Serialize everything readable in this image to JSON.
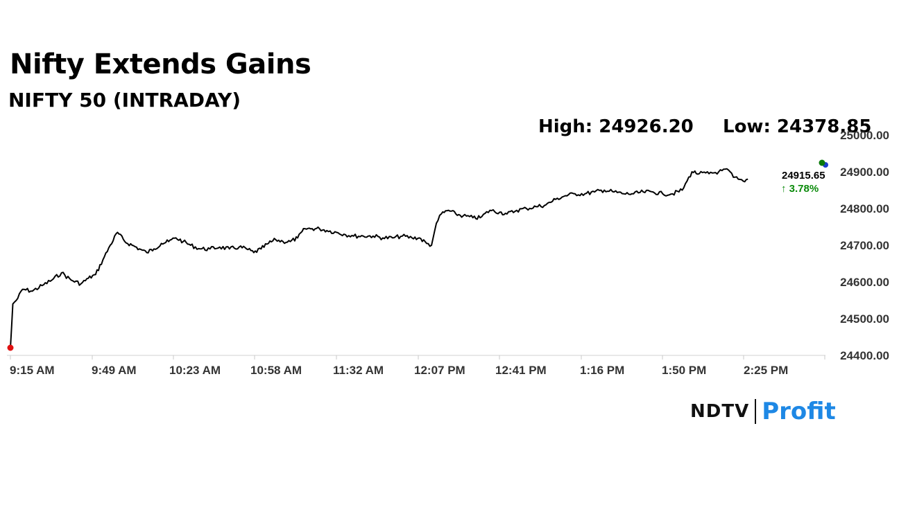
{
  "header": {
    "title": "Nifty Extends Gains",
    "subtitle": "NIFTY 50 (INTRADAY)"
  },
  "stats": {
    "high": "High: 24926.20",
    "low": "Low: 24378.85"
  },
  "chart_data": {
    "type": "line",
    "x_tick_labels": [
      "9:15 AM",
      "9:49 AM",
      "10:23 AM",
      "10:58 AM",
      "11:32 AM",
      "12:07 PM",
      "12:41 PM",
      "1:16 PM",
      "1:50 PM",
      "2:25 PM"
    ],
    "y_tick_labels": [
      "25000.00",
      "24900.00",
      "24800.00",
      "24700.00",
      "24600.00",
      "24500.00",
      "24400.00"
    ],
    "ylim": [
      24400,
      25000
    ],
    "y_axis_position": "right",
    "grid": false,
    "series": [
      {
        "color": "#000000",
        "points": [
          [
            "9:15",
            24420
          ],
          [
            "9:16",
            24540
          ],
          [
            "9:18",
            24555
          ],
          [
            "9:20",
            24580
          ],
          [
            "9:24",
            24575
          ],
          [
            "9:28",
            24590
          ],
          [
            "9:32",
            24605
          ],
          [
            "9:36",
            24625
          ],
          [
            "9:40",
            24605
          ],
          [
            "9:44",
            24595
          ],
          [
            "9:47",
            24610
          ],
          [
            "9:50",
            24620
          ],
          [
            "9:53",
            24660
          ],
          [
            "9:56",
            24700
          ],
          [
            "9:59",
            24735
          ],
          [
            "10:02",
            24710
          ],
          [
            "10:05",
            24700
          ],
          [
            "10:08",
            24690
          ],
          [
            "10:11",
            24680
          ],
          [
            "10:14",
            24690
          ],
          [
            "10:17",
            24705
          ],
          [
            "10:20",
            24710
          ],
          [
            "10:23",
            24720
          ],
          [
            "10:26",
            24710
          ],
          [
            "10:29",
            24700
          ],
          [
            "10:33",
            24690
          ],
          [
            "10:37",
            24690
          ],
          [
            "10:41",
            24695
          ],
          [
            "10:45",
            24690
          ],
          [
            "10:49",
            24695
          ],
          [
            "10:52",
            24690
          ],
          [
            "10:55",
            24680
          ],
          [
            "10:58",
            24690
          ],
          [
            "11:01",
            24705
          ],
          [
            "11:04",
            24715
          ],
          [
            "11:07",
            24710
          ],
          [
            "11:10",
            24710
          ],
          [
            "11:13",
            24720
          ],
          [
            "11:16",
            24745
          ],
          [
            "11:19",
            24745
          ],
          [
            "11:22",
            24745
          ],
          [
            "11:25",
            24740
          ],
          [
            "11:29",
            24735
          ],
          [
            "11:32",
            24730
          ],
          [
            "11:36",
            24725
          ],
          [
            "11:40",
            24725
          ],
          [
            "11:44",
            24725
          ],
          [
            "11:48",
            24720
          ],
          [
            "11:52",
            24720
          ],
          [
            "11:56",
            24725
          ],
          [
            "12:00",
            24720
          ],
          [
            "12:03",
            24720
          ],
          [
            "12:06",
            24705
          ],
          [
            "12:08",
            24700
          ],
          [
            "12:10",
            24760
          ],
          [
            "12:12",
            24785
          ],
          [
            "12:15",
            24795
          ],
          [
            "12:18",
            24785
          ],
          [
            "12:21",
            24780
          ],
          [
            "12:25",
            24775
          ],
          [
            "12:28",
            24775
          ],
          [
            "12:32",
            24795
          ],
          [
            "12:36",
            24790
          ],
          [
            "12:39",
            24785
          ],
          [
            "12:43",
            24795
          ],
          [
            "12:47",
            24800
          ],
          [
            "12:51",
            24805
          ],
          [
            "12:55",
            24810
          ],
          [
            "12:59",
            24825
          ],
          [
            "13:03",
            24835
          ],
          [
            "13:07",
            24840
          ],
          [
            "13:11",
            24840
          ],
          [
            "13:15",
            24845
          ],
          [
            "13:19",
            24850
          ],
          [
            "13:23",
            24845
          ],
          [
            "13:27",
            24840
          ],
          [
            "13:31",
            24840
          ],
          [
            "13:35",
            24845
          ],
          [
            "13:39",
            24845
          ],
          [
            "13:43",
            24840
          ],
          [
            "13:47",
            24840
          ],
          [
            "13:51",
            24850
          ],
          [
            "13:53",
            24875
          ],
          [
            "13:55",
            24900
          ],
          [
            "13:58",
            24895
          ],
          [
            "14:02",
            24895
          ],
          [
            "14:06",
            24900
          ],
          [
            "14:10",
            24905
          ],
          [
            "14:12",
            24885
          ],
          [
            "14:14",
            24880
          ],
          [
            "14:16",
            24875
          ],
          [
            "14:18",
            24880
          ]
        ]
      }
    ],
    "last_value": "24915.65",
    "change": "↑ 3.78%",
    "colors": {
      "line": "#000000",
      "up": "#0a8a0a",
      "start_marker": "#e01010",
      "end_marker": "#0a7a0a",
      "end_marker_2": "#1a3ec8"
    }
  },
  "logo": {
    "brand": "NDTV",
    "product": "Profit",
    "brand_color": "#111111",
    "product_color": "#1e88e5"
  }
}
